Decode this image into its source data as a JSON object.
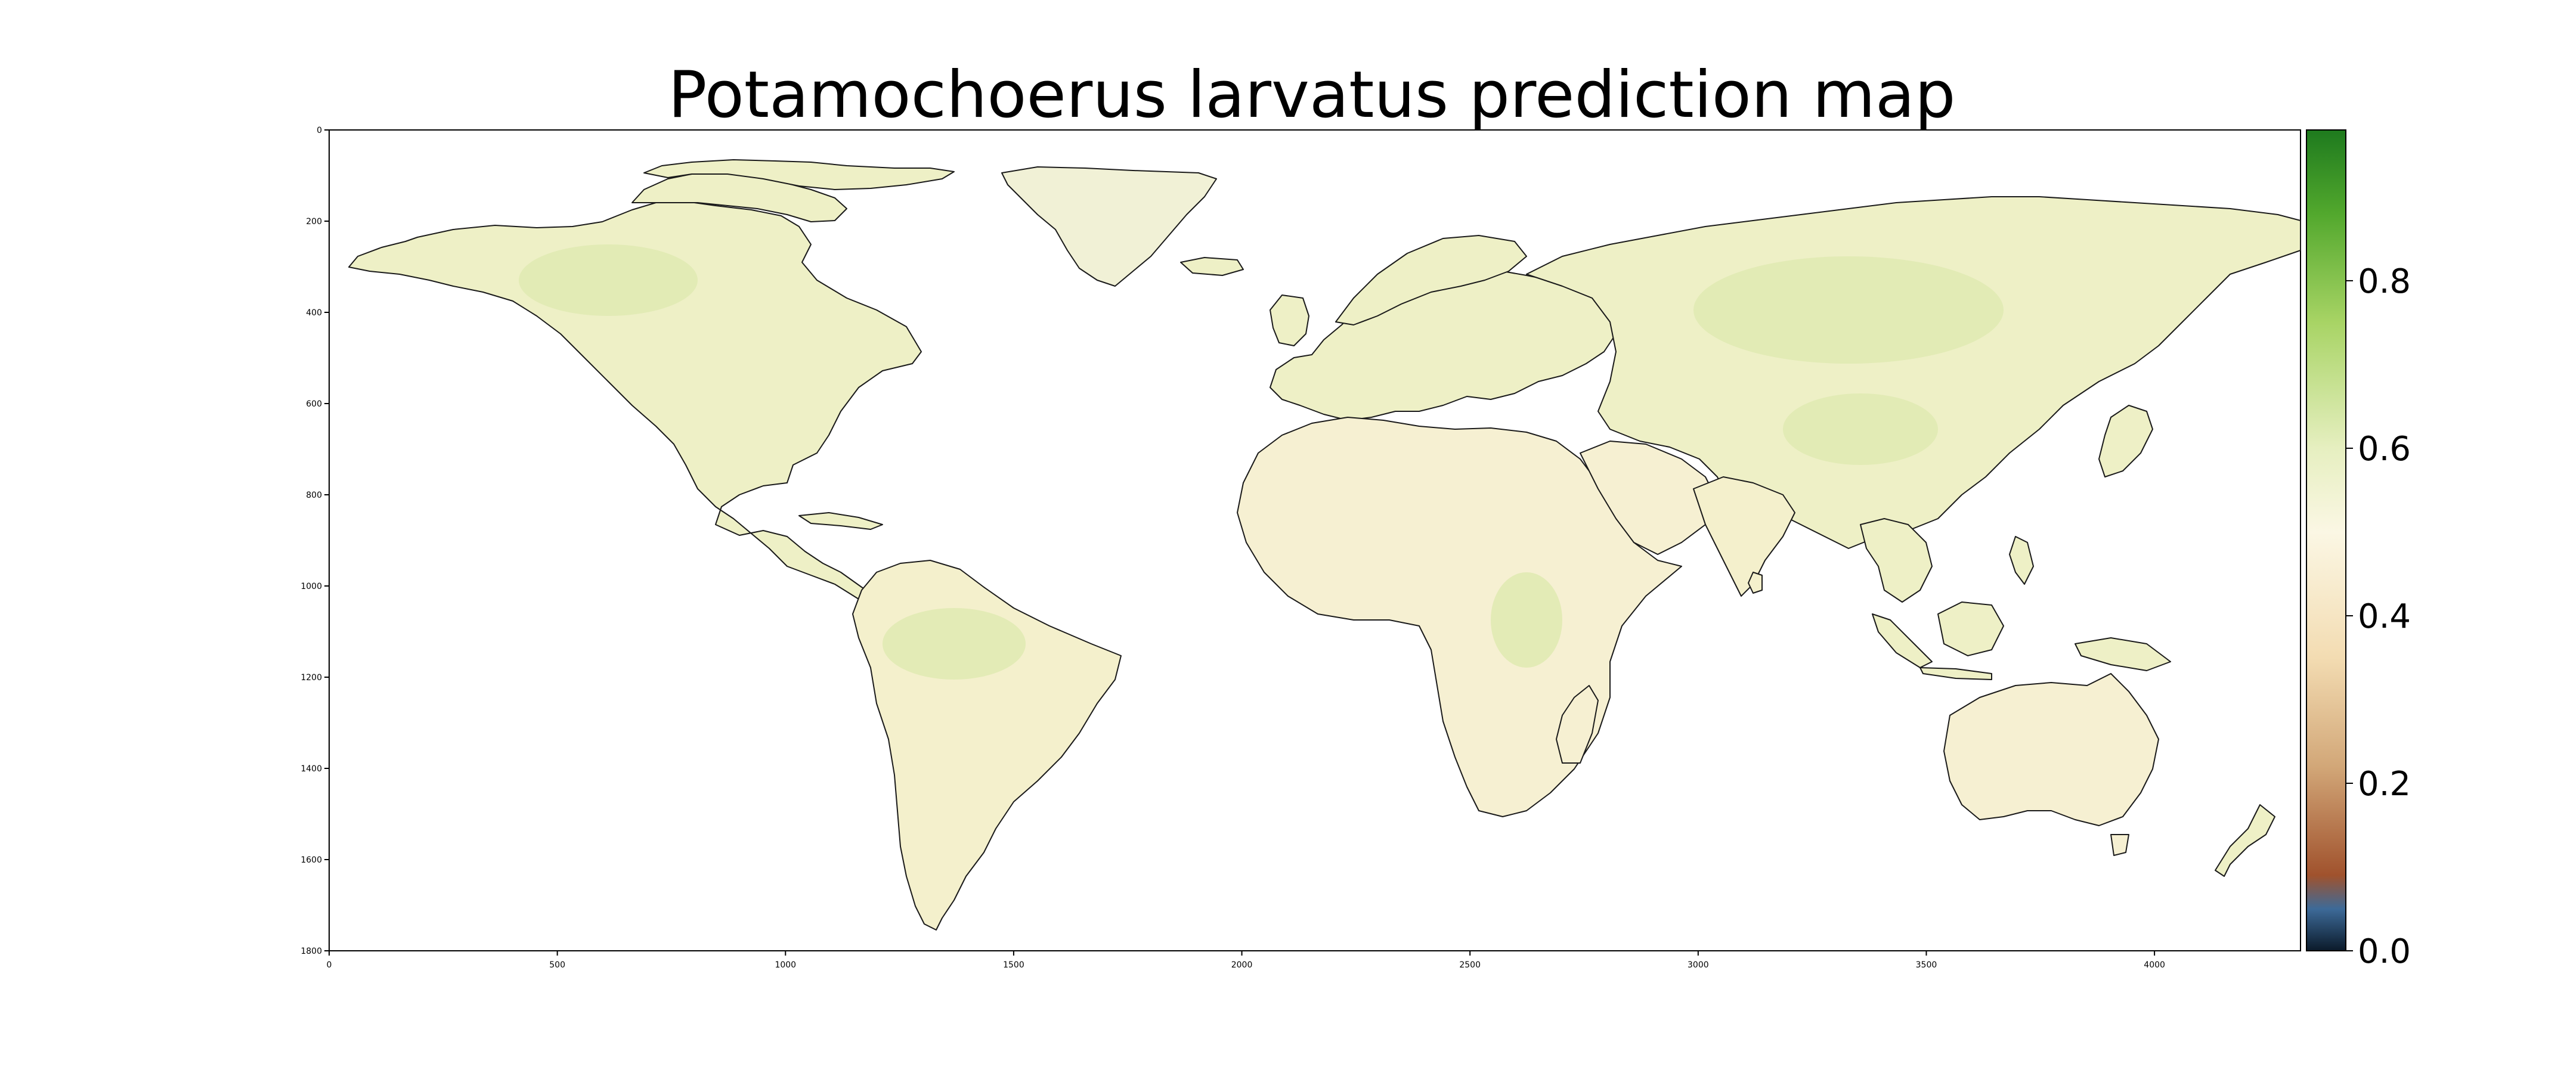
{
  "title": "Potamochoerus larvatus prediction map",
  "map": {
    "x_ticks": [
      "0",
      "500",
      "1000",
      "1500",
      "2000",
      "2500",
      "3000",
      "3500",
      "4000"
    ],
    "y_ticks": [
      "0",
      "200",
      "400",
      "600",
      "800",
      "1000",
      "1200",
      "1400",
      "1600",
      "1800"
    ],
    "x_range": [
      0,
      4320
    ],
    "y_range": [
      0,
      1800
    ],
    "land_color_dominant": "#f6f0cf",
    "land_color_high": "#e4edbe",
    "ocean_color": "#ffffff",
    "coastline_color": "#111111"
  },
  "colorbar": {
    "ticks": [
      "0.0",
      "0.2",
      "0.4",
      "0.6",
      "0.8"
    ],
    "range": [
      0.0,
      0.98
    ],
    "stops": [
      {
        "value": 0.0,
        "color": "#0b1a2a"
      },
      {
        "value": 0.05,
        "color": "#3d6a98"
      },
      {
        "value": 0.09,
        "color": "#a0522d"
      },
      {
        "value": 0.22,
        "color": "#d2a778"
      },
      {
        "value": 0.35,
        "color": "#f3dcb2"
      },
      {
        "value": 0.5,
        "color": "#fbf7e4"
      },
      {
        "value": 0.6,
        "color": "#e6efc0"
      },
      {
        "value": 0.75,
        "color": "#a8d465"
      },
      {
        "value": 0.88,
        "color": "#52a82d"
      },
      {
        "value": 0.98,
        "color": "#1e7a1e"
      }
    ]
  }
}
